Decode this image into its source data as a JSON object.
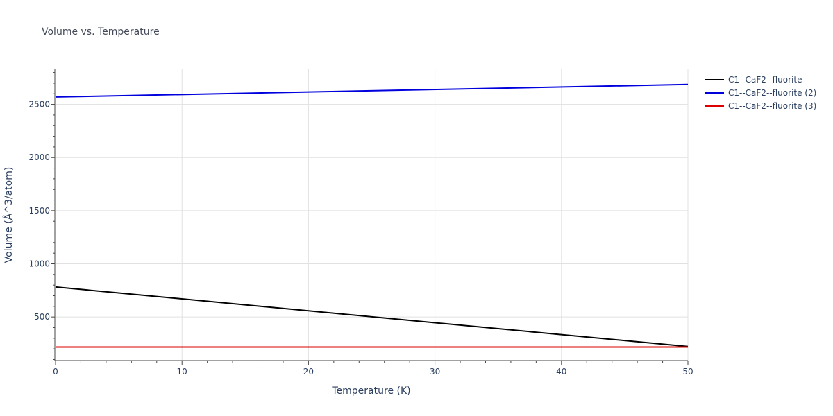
{
  "chart_data": {
    "type": "line",
    "title": "Volume vs. Temperature",
    "xlabel": "Temperature (K)",
    "ylabel": "Volume (Å^3/atom)",
    "xlim": [
      0,
      50
    ],
    "ylim": [
      90,
      2830
    ],
    "xticks": [
      0,
      10,
      20,
      30,
      40,
      50
    ],
    "yticks": [
      500,
      1000,
      1500,
      2000,
      2500
    ],
    "grid": true,
    "legend_position": "top-right",
    "series": [
      {
        "name": "C1--CaF2--fluorite",
        "color": "#000000",
        "x": [
          0,
          50
        ],
        "y": [
          782,
          222
        ]
      },
      {
        "name": "C1--CaF2--fluorite (2)",
        "color": "#0000dd",
        "x": [
          0,
          50
        ],
        "y": [
          2570,
          2688
        ]
      },
      {
        "name": "C1--CaF2--fluorite (3)",
        "color": "#dd0000",
        "x": [
          0,
          50
        ],
        "y": [
          217,
          217
        ]
      }
    ]
  }
}
